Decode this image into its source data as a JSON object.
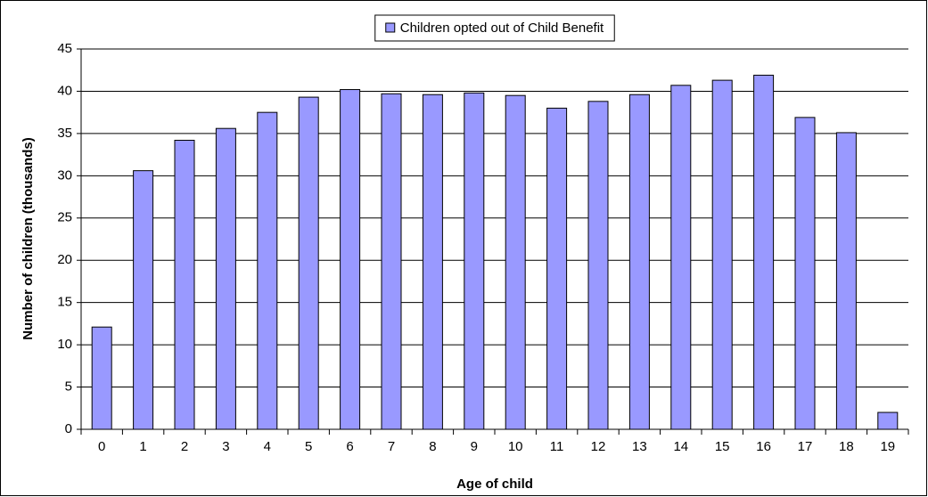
{
  "chart_data": {
    "type": "bar",
    "x_label": "Age of child",
    "y_label": "Number of children (thousands)",
    "categories": [
      "0",
      "1",
      "2",
      "3",
      "4",
      "5",
      "6",
      "7",
      "8",
      "9",
      "10",
      "11",
      "12",
      "13",
      "14",
      "15",
      "16",
      "17",
      "18",
      "19"
    ],
    "series": [
      {
        "name": "Children opted out of Child Benefit",
        "color": "#9999ff",
        "values": [
          12.1,
          30.6,
          34.2,
          35.6,
          37.5,
          39.3,
          40.2,
          39.7,
          39.6,
          39.8,
          39.5,
          38.0,
          38.8,
          39.6,
          40.7,
          41.3,
          41.9,
          36.9,
          35.1,
          2.0
        ]
      }
    ],
    "ylim": [
      0,
      45
    ],
    "yticks": [
      0,
      5,
      10,
      15,
      20,
      25,
      30,
      35,
      40,
      45
    ],
    "grid": true,
    "legend": "top"
  }
}
